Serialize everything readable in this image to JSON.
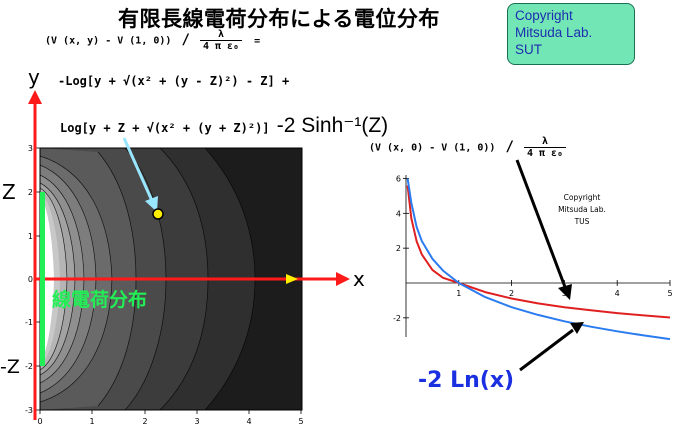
{
  "title": "有限長線電荷分布による電位分布",
  "copyright_box": {
    "lines": [
      "Copyright",
      "Mitsuda Lab.",
      "SUT"
    ]
  },
  "formula": {
    "lhs": "(V (x, y) - V (1, 0))",
    "slash": "/",
    "num": "λ",
    "den": "4 π ε₀",
    "eq": "=",
    "line1": "-Log[y + √(x² + (y - Z)²) - Z] +",
    "line2": "Log[y + Z + √(x² + (y + Z)²)]",
    "line2_tail": "-2 Sinh⁻¹(Z)"
  },
  "contour_plot": {
    "y_axis_label": "y",
    "x_axis_label": "x",
    "z_label": "Z",
    "neg_z_label": "-Z",
    "line_charge_label": "線電荷分布",
    "x_ticks": [
      "0",
      "1",
      "2",
      "3",
      "4",
      "5"
    ],
    "y_ticks": [
      "3",
      "2",
      "1",
      "0",
      "-1",
      "-2",
      "-3"
    ]
  },
  "graph": {
    "ylabel_lhs": "(V (x, 0) - V (1, 0))",
    "ylabel_slash": "/",
    "ylabel_num": "λ",
    "ylabel_den": "4 π ε₀",
    "copyright_lines": [
      "Copyright",
      "Mitsuda Lab.",
      "TUS"
    ],
    "ln_label": "-2 Ln(x)",
    "x_ticks": [
      "1",
      "2",
      "3",
      "4",
      "5"
    ],
    "y_ticks": [
      "6",
      "4",
      "2",
      "-2"
    ]
  },
  "colors": {
    "axis_red": "#ff1a1a",
    "line_charge": "#22ee55",
    "charge_label": "#22ee55",
    "pointer_arrow": "#99e6ff",
    "marker_point": "#ffee00",
    "curve_red": "#e02020",
    "curve_blue": "#2b7cf0",
    "ln_label": "#1a2fe0",
    "copyright_bg": "#73e6b5",
    "copyright_text": "#1b2fb0"
  },
  "chart_data": {
    "type": "line",
    "xlabel": "",
    "ylabel": "(V (x, 0) - V (1, 0)) / (λ / 4 π ε₀)",
    "xlim": [
      0,
      5
    ],
    "ylim": [
      -3.1,
      6.2
    ],
    "series": [
      {
        "name": "",
        "x": [
          0.03,
          0.1,
          0.2,
          0.3,
          0.5,
          0.7,
          1.0,
          1.5,
          2.0,
          2.5,
          3.0,
          3.5,
          4.0,
          4.5,
          5.0
        ],
        "y": [
          5.6,
          3.72,
          2.4,
          1.64,
          0.75,
          0.3,
          0.0,
          -0.52,
          -0.89,
          -1.17,
          -1.39,
          -1.57,
          -1.73,
          -1.86,
          -1.98
        ]
      },
      {
        "name": "-2 Ln(x)",
        "x": [
          0.03,
          0.1,
          0.2,
          0.3,
          0.5,
          0.7,
          1.0,
          1.5,
          2.0,
          2.5,
          3.0,
          3.5,
          4.0,
          4.5,
          5.0
        ],
        "y": [
          6.0,
          4.61,
          3.22,
          2.41,
          1.39,
          0.71,
          0.0,
          -0.81,
          -1.39,
          -1.83,
          -2.2,
          -2.51,
          -2.77,
          -3.01,
          -3.22
        ]
      }
    ]
  }
}
